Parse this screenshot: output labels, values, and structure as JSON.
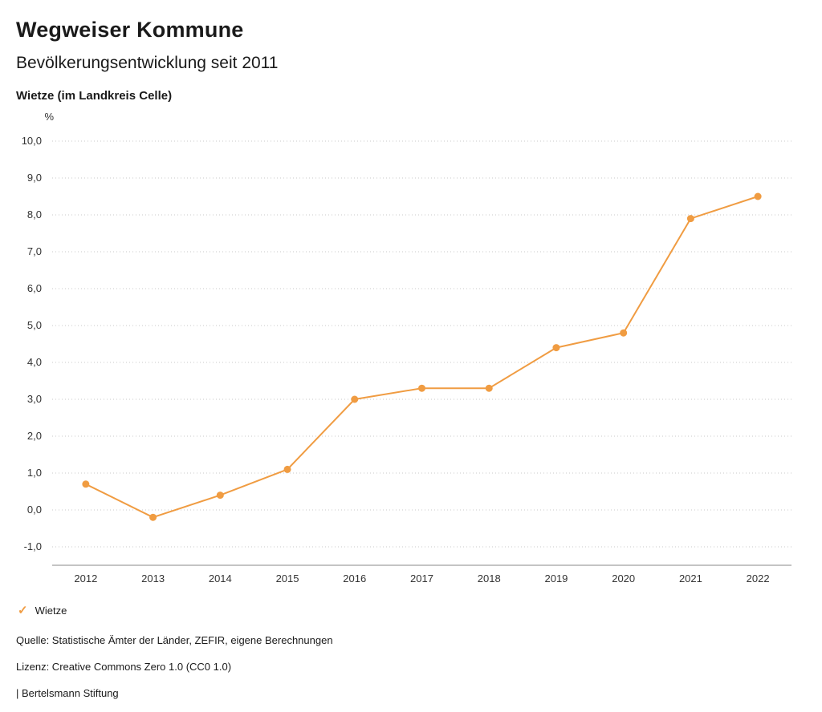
{
  "header": {
    "title": "Wegweiser Kommune",
    "subtitle": "Bevölkerungsentwicklung seit 2011",
    "region": "Wietze (im Landkreis Celle)"
  },
  "chart_data": {
    "type": "line",
    "title": "Bevölkerungsentwicklung seit 2011",
    "unit": "%",
    "x": [
      "2012",
      "2013",
      "2014",
      "2015",
      "2016",
      "2017",
      "2018",
      "2019",
      "2020",
      "2021",
      "2022"
    ],
    "series": [
      {
        "name": "Wietze",
        "color": "#F09C42",
        "values": [
          0.7,
          -0.2,
          0.4,
          1.1,
          3.0,
          3.3,
          3.3,
          4.4,
          4.8,
          7.9,
          8.5
        ]
      }
    ],
    "ylim": [
      -1.0,
      10.0
    ],
    "yticks": [
      10,
      9,
      8,
      7,
      6,
      5,
      4,
      3,
      2,
      1,
      0,
      -1
    ],
    "ytick_labels": [
      "10,0",
      "9,0",
      "8,0",
      "7,0",
      "6,0",
      "5,0",
      "4,0",
      "3,0",
      "2,0",
      "1,0",
      "0,0",
      "-1,0"
    ],
    "grid": true,
    "legend_position": "bottom-left"
  },
  "legend": {
    "items": [
      {
        "label": "Wietze",
        "color": "#F09C42",
        "icon": "check",
        "glyph": "✓"
      }
    ]
  },
  "footer": {
    "source": "Quelle: Statistische Ämter der Länder, ZEFIR, eigene Berechnungen",
    "license": "Lizenz: Creative Commons Zero 1.0 (CC0 1.0)",
    "attribution": "| Bertelsmann Stiftung"
  },
  "colors": {
    "accent": "#F09C42",
    "grid": "#c9c9c9",
    "axis": "#8a8a8a",
    "text": "#1a1a1a"
  }
}
